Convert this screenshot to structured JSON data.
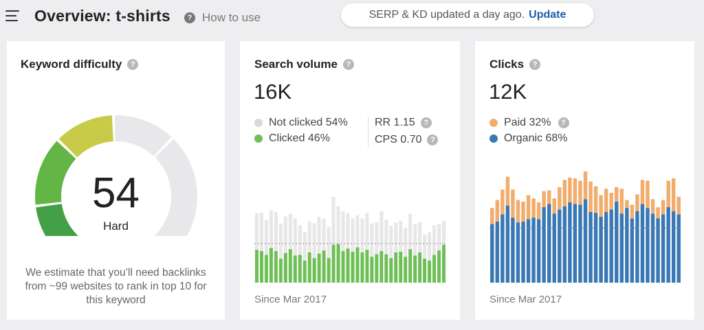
{
  "header": {
    "title": "Overview: t-shirts",
    "help_label": "How to use",
    "notice_text": "SERP & KD updated a day ago.",
    "update_label": "Update"
  },
  "keyword_difficulty": {
    "title": "Keyword difficulty",
    "score": "54",
    "label": "Hard",
    "description": "We estimate that you’ll need backlinks from ~99 websites to rank in top 10 for this keyword",
    "score_value": 54
  },
  "search_volume": {
    "title": "Search volume",
    "value": "16K",
    "legend": [
      {
        "label": "Not clicked 54%",
        "color": "#d9d9d9"
      },
      {
        "label": "Clicked 46%",
        "color": "#6fbf57"
      }
    ],
    "rr_label": "RR 1.15",
    "cps_label": "CPS 0.70",
    "since": "Since Mar 2017"
  },
  "clicks": {
    "title": "Clicks",
    "value": "12K",
    "legend": [
      {
        "label": "Paid 32%",
        "color": "#f2ac6c"
      },
      {
        "label": "Organic 68%",
        "color": "#3a78b5"
      }
    ],
    "since": "Since Mar 2017"
  },
  "colors": {
    "gauge_dark_green": "#43a047",
    "gauge_green": "#63b545",
    "gauge_yellow": "#c8cb48",
    "gauge_empty": "#e8e8ea",
    "clicked": "#6fbf57",
    "not_clicked": "#e7e7e7",
    "paid": "#f2ac6c",
    "organic": "#3a78b5"
  },
  "chart_data": [
    {
      "type": "bar",
      "series": [
        {
          "name": "Not clicked",
          "values": [
            0.58,
            0.61,
            0.55,
            0.6,
            0.62,
            0.55,
            0.58,
            0.56,
            0.59,
            0.47,
            0.45,
            0.49,
            0.55,
            0.58,
            0.5,
            0.49,
            0.76,
            0.6,
            0.63,
            0.56,
            0.53,
            0.51,
            0.54,
            0.58,
            0.53,
            0.51,
            0.63,
            0.55,
            0.51,
            0.47,
            0.49,
            0.46,
            0.56,
            0.5,
            0.48,
            0.38,
            0.45,
            0.47,
            0.42,
            0.38
          ]
        },
        {
          "name": "Clicked",
          "values": [
            0.52,
            0.5,
            0.44,
            0.55,
            0.5,
            0.38,
            0.47,
            0.53,
            0.43,
            0.44,
            0.35,
            0.48,
            0.39,
            0.46,
            0.51,
            0.39,
            0.6,
            0.61,
            0.5,
            0.54,
            0.49,
            0.56,
            0.48,
            0.52,
            0.41,
            0.45,
            0.5,
            0.45,
            0.39,
            0.48,
            0.49,
            0.41,
            0.53,
            0.43,
            0.48,
            0.38,
            0.35,
            0.44,
            0.51,
            0.6
          ]
        }
      ]
    },
    {
      "type": "bar",
      "series": [
        {
          "name": "Paid",
          "values": [
            0.2,
            0.27,
            0.31,
            0.36,
            0.35,
            0.28,
            0.25,
            0.3,
            0.24,
            0.21,
            0.2,
            0.17,
            0.19,
            0.28,
            0.33,
            0.31,
            0.32,
            0.3,
            0.43,
            0.38,
            0.33,
            0.27,
            0.29,
            0.21,
            0.18,
            0.31,
            0.1,
            0.17,
            0.21,
            0.3,
            0.34,
            0.18,
            0.14,
            0.18,
            0.33,
            0.41,
            0.22
          ]
        },
        {
          "name": "Organic",
          "values": [
            0.73,
            0.76,
            0.85,
            0.96,
            0.81,
            0.75,
            0.76,
            0.79,
            0.81,
            0.79,
            0.94,
            0.98,
            0.86,
            0.91,
            0.95,
            1.0,
            0.98,
            0.97,
            1.04,
            0.88,
            0.87,
            0.82,
            0.88,
            0.91,
            1.01,
            0.86,
            0.93,
            0.8,
            0.89,
            0.98,
            0.93,
            0.86,
            0.8,
            0.85,
            0.94,
            0.89,
            0.85
          ]
        }
      ]
    }
  ]
}
